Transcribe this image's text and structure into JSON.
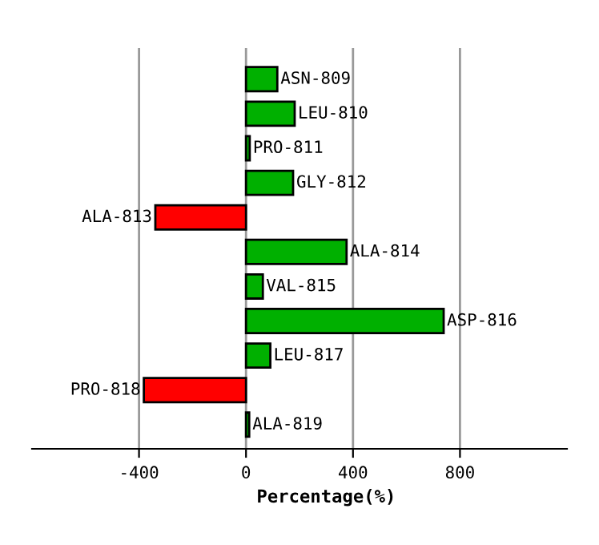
{
  "chart_data": {
    "type": "bar",
    "orientation": "horizontal",
    "xlabel": "Percentage(%)",
    "categories": [
      "ASN-809",
      "LEU-810",
      "PRO-811",
      "GLY-812",
      "ALA-813",
      "ALA-814",
      "VAL-815",
      "ASP-816",
      "LEU-817",
      "PRO-818",
      "ALA-819"
    ],
    "values": [
      117,
      182,
      14,
      176,
      -339,
      376,
      63,
      739,
      91,
      -382,
      12
    ],
    "colors": [
      "#00b000",
      "#00b000",
      "#00b000",
      "#00b000",
      "#ff0000",
      "#00b000",
      "#00b000",
      "#00b000",
      "#00b000",
      "#ff0000",
      "#00b000"
    ],
    "xlim": [
      -800,
      1200
    ],
    "xticks": [
      -400,
      0,
      400,
      800
    ],
    "grid": "x",
    "legend": false
  }
}
